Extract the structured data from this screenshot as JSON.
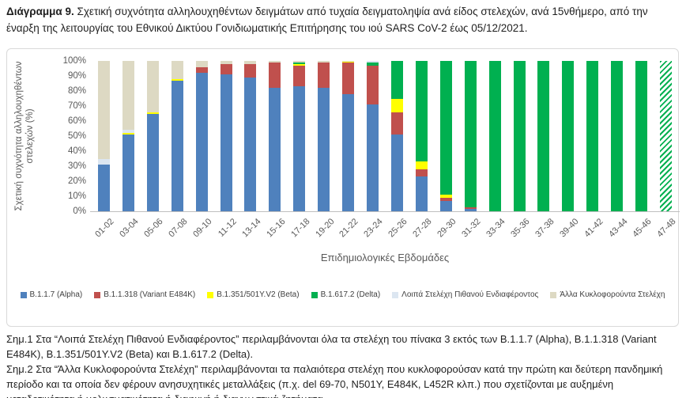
{
  "title": {
    "label": "Διάγραμμα 9.",
    "text": " Σχετική συχνότητα αλληλουχηθέντων δειγμάτων από τυχαία δειγματοληψία ανά είδος στελεχών, ανά 15νθήμερο, από την έναρξη της λειτουργίας του Εθνικού Δικτύου Γονιδιωματικής Επιτήρησης του ιού SARS CoV-2 έως 05/12/2021."
  },
  "chart_data": {
    "type": "bar",
    "stacked": true,
    "percent": true,
    "grid": false,
    "legend_position": "bottom",
    "ylim": [
      0,
      100
    ],
    "ylabel": "Σχετική συχνότητα αλληλουχηθέντων στελεχών (%)",
    "xlabel": "Επιδημιολογικές Εβδομάδες",
    "y_ticks": [
      "100%",
      "90%",
      "80%",
      "70%",
      "60%",
      "50%",
      "40%",
      "30%",
      "20%",
      "10%",
      "0%"
    ],
    "categories": [
      "01-02",
      "03-04",
      "05-06",
      "07-08",
      "09-10",
      "11-12",
      "13-14",
      "15-16",
      "17-18",
      "19-20",
      "21-22",
      "23-24",
      "25-26",
      "27-28",
      "29-30",
      "31-32",
      "33-34",
      "35-36",
      "37-38",
      "39-40",
      "41-42",
      "43-44",
      "45-46",
      "47-48"
    ],
    "series": [
      {
        "name": "B.1.1.7 (Alpha)",
        "color": "#4F81BD",
        "values": [
          31,
          51,
          65,
          87,
          92,
          91,
          89,
          82,
          83,
          82,
          78,
          71,
          51,
          23,
          7,
          1.5,
          0,
          0,
          0,
          0,
          0,
          0,
          0,
          0
        ]
      },
      {
        "name": "B.1.1.318 (Variant E484K)",
        "color": "#C0504D",
        "values": [
          0,
          0,
          0,
          0,
          4,
          7,
          9,
          17,
          14,
          17,
          21,
          26,
          15,
          5,
          2,
          1,
          0,
          0,
          0,
          0,
          0,
          0,
          0,
          0
        ]
      },
      {
        "name": "B.1.351/501Y.V2 (Beta)",
        "color": "#FFFF00",
        "values": [
          0,
          1,
          1,
          1,
          0,
          0,
          0,
          0,
          1,
          0,
          0.5,
          0,
          9,
          5,
          2,
          0,
          0,
          0,
          0,
          0,
          0,
          0,
          0,
          0
        ]
      },
      {
        "name": "B.1.617.2 (Delta)",
        "color": "#00B050",
        "values": [
          0,
          0,
          0,
          0,
          0,
          0,
          0,
          0,
          1,
          0,
          0,
          2,
          25,
          67,
          89,
          97.5,
          100,
          100,
          100,
          100,
          100,
          100,
          100,
          100
        ]
      },
      {
        "name": "Λοιπά Στελέχη Πιθανού Ενδιαφέροντος",
        "color": "#DCE6F1",
        "values": [
          4,
          2,
          0,
          0,
          0,
          0,
          0,
          0,
          0,
          0,
          0,
          1,
          0,
          0,
          0,
          0,
          0,
          0,
          0,
          0,
          0,
          0,
          0,
          0
        ]
      },
      {
        "name": "Άλλα Κυκλοφορούντα Στελέχη",
        "color": "#DDD9C3",
        "values": [
          65,
          46,
          34,
          12,
          4,
          2,
          2,
          1,
          1,
          1,
          0.5,
          0,
          0,
          0,
          0,
          0,
          0,
          0,
          0,
          0,
          0,
          0,
          0,
          0
        ]
      }
    ],
    "hatched_categories": [
      "47-48"
    ]
  },
  "footnotes": {
    "note1": "Σημ.1 Στα “Λοιπά Στελέχη Πιθανού Ενδιαφέροντος” περιλαμβάνονται όλα τα στελέχη του πίνακα 3 εκτός των B.1.1.7 (Alpha), B.1.1.318 (Variant E484K), B.1.351/501Y.V2 (Beta) και B.1.617.2 (Delta).",
    "note2": "Σημ.2 Στα “Άλλα Κυκλοφορούντα Στελέχη” περιλαμβάνονται τα παλαιότερα στελέχη που κυκλοφορούσαν κατά την πρώτη και δεύτερη πανδημική περίοδο και τα οποία δεν φέρουν ανησυχητικές μεταλλάξεις (π.χ. del 69-70, N501Y, E484K, L452R κλπ.) που σχετίζονται με αυξημένη μεταδοτικότητα ή μολυσματικότητα ή διαφυγή ή διαγνωστικά ζητήματα."
  }
}
